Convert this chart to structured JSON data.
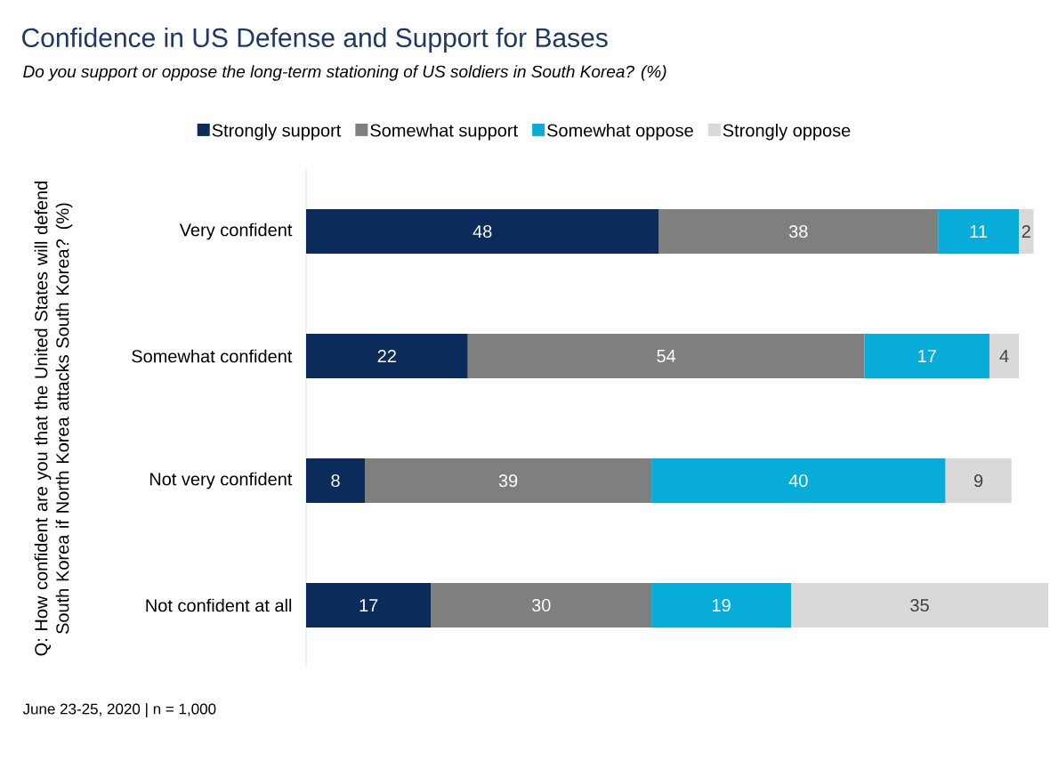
{
  "chart_data": {
    "type": "bar",
    "orientation": "horizontal",
    "stacked": true,
    "title": "Confidence in US Defense and Support for Bases",
    "subtitle": "Do you support or oppose the long-term stationing of US soldiers in South Korea? (%)",
    "ylabel": "Q: How confident are you that the United States will defend South Korea if North Korea attacks South Korea? (%)",
    "categories": [
      "Very confident",
      "Somewhat confident",
      "Not very confident",
      "Not confident at all"
    ],
    "series": [
      {
        "name": "Strongly support",
        "color": "#0b2c5a",
        "values": [
          48,
          22,
          8,
          17
        ]
      },
      {
        "name": "Somewhat support",
        "color": "#7f7f7f",
        "values": [
          38,
          54,
          39,
          30
        ]
      },
      {
        "name": "Somewhat oppose",
        "color": "#08acd8",
        "values": [
          11,
          17,
          40,
          19
        ]
      },
      {
        "name": "Strongly oppose",
        "color": "#d9d9d9",
        "values": [
          2,
          4,
          9,
          35
        ]
      }
    ],
    "data_labels": true,
    "legend": "top",
    "annotations": [
      "June 23-25, 2020 | n = 1,000"
    ]
  }
}
